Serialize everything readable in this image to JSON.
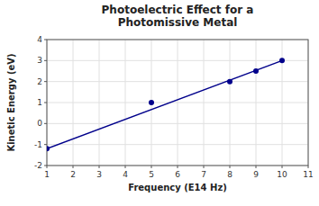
{
  "chart_data": {
    "type": "line",
    "title": "Photoelectric Effect for a\nPhotomissive Metal",
    "x_label": "Frequency (E14 Hz)",
    "y_label": "Kinetic Energy (eV)",
    "series": [
      {
        "type": "line",
        "color": "#00008B",
        "x": [
          1,
          10
        ],
        "values": [
          -1.2,
          3.0
        ]
      },
      {
        "type": "scatter",
        "color": "#00008B",
        "marker": "circle",
        "x": [
          1,
          5,
          8,
          9,
          10
        ],
        "values": [
          -1.2,
          1.0,
          2.0,
          2.5,
          3.0
        ]
      }
    ],
    "xlim": [
      1,
      11
    ],
    "ylim": [
      -2,
      4
    ],
    "xticks": [
      1,
      2,
      3,
      4,
      5,
      6,
      7,
      8,
      9,
      10,
      11
    ],
    "yticks": [
      -2,
      -1,
      0,
      1,
      2,
      3,
      4
    ],
    "grid": true
  }
}
